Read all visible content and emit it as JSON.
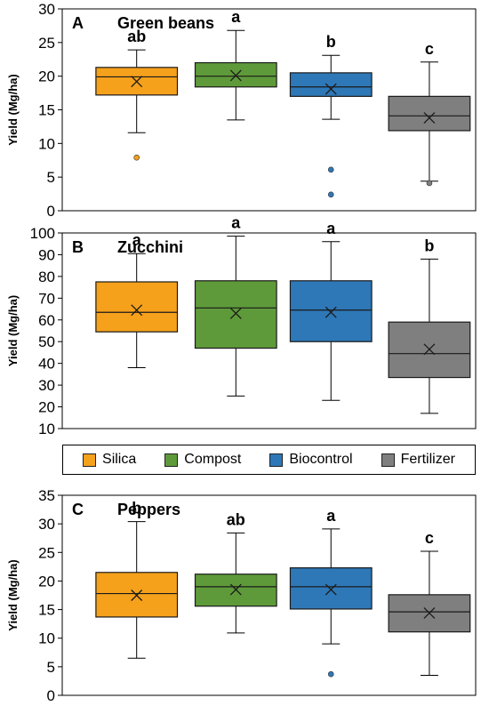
{
  "legend": [
    {
      "name": "Silica",
      "color": "#f5a11c"
    },
    {
      "name": "Compost",
      "color": "#5e9a3a"
    },
    {
      "name": "Biocontrol",
      "color": "#2e78b7"
    },
    {
      "name": "Fertilizer",
      "color": "#7f7f7f"
    }
  ],
  "chart_data": [
    {
      "type": "boxplot",
      "panel_letter": "A",
      "title": "Green beans",
      "ylabel": "Yield (Mg/ha)",
      "ylim": [
        0,
        30
      ],
      "yticks": [
        0,
        5,
        10,
        15,
        20,
        25,
        30
      ],
      "categories": [
        "Silica",
        "Compost",
        "Biocontrol",
        "Fertilizer"
      ],
      "boxes": [
        {
          "whisker_low": 11.6,
          "q1": 17.2,
          "median": 19.9,
          "q3": 21.3,
          "whisker_high": 23.9,
          "mean": 19.2,
          "outliers": [
            7.9
          ],
          "letter": "ab"
        },
        {
          "whisker_low": 13.5,
          "q1": 18.4,
          "median": 20.0,
          "q3": 22.0,
          "whisker_high": 26.8,
          "mean": 20.1,
          "outliers": [],
          "letter": "a"
        },
        {
          "whisker_low": 13.6,
          "q1": 17.0,
          "median": 18.4,
          "q3": 20.5,
          "whisker_high": 23.1,
          "mean": 18.1,
          "outliers": [
            6.1,
            2.4
          ],
          "letter": "b"
        },
        {
          "whisker_low": 4.4,
          "q1": 11.9,
          "median": 14.1,
          "q3": 17.0,
          "whisker_high": 22.1,
          "mean": 13.8,
          "outliers": [
            4.1
          ],
          "letter": "c"
        }
      ]
    },
    {
      "type": "boxplot",
      "panel_letter": "B",
      "title": "Zucchini",
      "ylabel": "Yield (Mg/ha)",
      "ylim": [
        10,
        100
      ],
      "yticks": [
        10,
        20,
        30,
        40,
        50,
        60,
        70,
        80,
        90,
        100
      ],
      "categories": [
        "Silica",
        "Compost",
        "Biocontrol",
        "Fertilizer"
      ],
      "boxes": [
        {
          "whisker_low": 38,
          "q1": 54.5,
          "median": 63.5,
          "q3": 77.5,
          "whisker_high": 90.5,
          "mean": 64.5,
          "outliers": [],
          "letter": "a"
        },
        {
          "whisker_low": 25,
          "q1": 47,
          "median": 65.5,
          "q3": 78,
          "whisker_high": 98.5,
          "mean": 63,
          "outliers": [],
          "letter": "a"
        },
        {
          "whisker_low": 23,
          "q1": 50,
          "median": 64.5,
          "q3": 78,
          "whisker_high": 96,
          "mean": 63.5,
          "outliers": [],
          "letter": "a"
        },
        {
          "whisker_low": 17,
          "q1": 33.5,
          "median": 44.5,
          "q3": 59,
          "whisker_high": 88,
          "mean": 46.5,
          "outliers": [],
          "letter": "b"
        }
      ]
    },
    {
      "type": "boxplot",
      "panel_letter": "C",
      "title": "Peppers",
      "ylabel": "Yield (Mg/ha)",
      "ylim": [
        0,
        35
      ],
      "yticks": [
        0,
        5,
        10,
        15,
        20,
        25,
        30,
        35
      ],
      "categories": [
        "Silica",
        "Compost",
        "Biocontrol",
        "Fertilizer"
      ],
      "boxes": [
        {
          "whisker_low": 6.5,
          "q1": 13.7,
          "median": 17.8,
          "q3": 21.5,
          "whisker_high": 30.4,
          "mean": 17.5,
          "outliers": [],
          "letter": "b"
        },
        {
          "whisker_low": 10.9,
          "q1": 15.6,
          "median": 19.0,
          "q3": 21.2,
          "whisker_high": 28.4,
          "mean": 18.5,
          "outliers": [],
          "letter": "ab"
        },
        {
          "whisker_low": 9.0,
          "q1": 15.1,
          "median": 19.0,
          "q3": 22.3,
          "whisker_high": 29.1,
          "mean": 18.5,
          "outliers": [
            3.7
          ],
          "letter": "a"
        },
        {
          "whisker_low": 3.5,
          "q1": 11.1,
          "median": 14.6,
          "q3": 17.6,
          "whisker_high": 25.2,
          "mean": 14.4,
          "outliers": [],
          "letter": "c"
        }
      ]
    }
  ]
}
